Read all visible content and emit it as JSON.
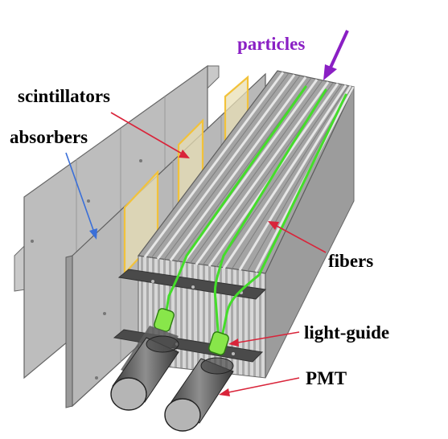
{
  "labels": {
    "particles": "particles",
    "scintillators": "scintillators",
    "absorbers": "absorbers",
    "fibers": "fibers",
    "light_guide": "light-guide",
    "pmt": "PMT"
  },
  "colors": {
    "particles_label": "#8a1fc4",
    "particles_arrow": "#8a1fc4",
    "scintillators_arrow": "#d9243a",
    "absorbers_arrow": "#3a6fd8",
    "fibers_arrow": "#d9243a",
    "light_guide_arrow": "#d9243a",
    "pmt_arrow": "#d9243a",
    "fiber_green": "#44dd2a",
    "scintillator_yellow": "#f2c23a",
    "absorber_gray": "#b9b9b9",
    "label_text": "#000000"
  }
}
